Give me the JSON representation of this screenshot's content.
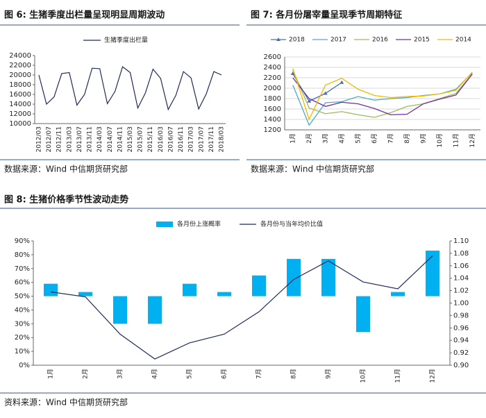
{
  "chart_data": [
    {
      "type": "line",
      "title": "图 6:  生猪季度出栏量呈现明显周期波动",
      "source": "数据来源：Wind  中信期货研究部",
      "x_labels": [
        "2012/03",
        "2012/07",
        "2012/11",
        "2013/03",
        "2013/07",
        "2013/11",
        "2014/03",
        "2014/07",
        "2014/11",
        "2015/03",
        "2015/07",
        "2015/11",
        "2016/03",
        "2016/07",
        "2016/11",
        "2017/03",
        "2017/07",
        "2017/11",
        "2018/03"
      ],
      "series": [
        {
          "name": "生猪季度出栏量",
          "color": "#1f2a5a",
          "values": [
            20000,
            14000,
            15500,
            20300,
            20500,
            13800,
            16000,
            21400,
            21300,
            14100,
            16600,
            21700,
            20500,
            13200,
            16300,
            21200,
            19300,
            12900,
            15800,
            20700,
            19400,
            13000,
            16100,
            20700,
            20000
          ]
        }
      ],
      "ylim": [
        10000,
        24000
      ],
      "yticks": [
        10000,
        12000,
        14000,
        16000,
        18000,
        20000,
        22000,
        24000
      ]
    },
    {
      "type": "line",
      "title": "图 7:  各月份屠宰量呈现季节周期特征",
      "source": "数据来源：Wind  中信期货研究部",
      "categories": [
        "1月",
        "2月",
        "3月",
        "4月",
        "5月",
        "6月",
        "7月",
        "8月",
        "9月",
        "10月",
        "11月",
        "12月"
      ],
      "series": [
        {
          "name": "2018",
          "color": "#4a6fb0",
          "marker": "triangle",
          "values": [
            2280,
            1750,
            1900,
            2110,
            null,
            null,
            null,
            null,
            null,
            null,
            null,
            null
          ]
        },
        {
          "name": "2017",
          "color": "#4bacc6",
          "values": [
            2060,
            1290,
            1720,
            1740,
            1840,
            1770,
            1800,
            1820,
            1860,
            1890,
            1980,
            2300
          ]
        },
        {
          "name": "2016",
          "color": "#9bbb59",
          "values": [
            2350,
            1620,
            1510,
            1550,
            1490,
            1440,
            1530,
            1650,
            1700,
            1800,
            1900,
            2280
          ]
        },
        {
          "name": "2015",
          "color": "#7030a0",
          "values": [
            2200,
            1800,
            1650,
            1730,
            1700,
            1610,
            1490,
            1500,
            1700,
            1790,
            1870,
            2270
          ]
        },
        {
          "name": "2014",
          "color": "#f5b800",
          "values": [
            2380,
            1400,
            2060,
            2190,
            1980,
            1860,
            1820,
            1840,
            1850,
            1890,
            1960,
            2310
          ]
        }
      ],
      "ylim": [
        1200,
        2600
      ],
      "yticks": [
        1200,
        1400,
        1600,
        1800,
        2000,
        2200,
        2400,
        2600
      ]
    },
    {
      "type": "combo",
      "title": "图 8:  生猪价格季节性波动走势",
      "source": "资料来源：Wind    中信期货研究部",
      "categories": [
        "1月",
        "2月",
        "3月",
        "4月",
        "5月",
        "6月",
        "7月",
        "8月",
        "9月",
        "10月",
        "11月",
        "12月"
      ],
      "series": [
        {
          "name": "各月份上涨概率",
          "color": "#00b0f0",
          "kind": "bar",
          "values": [
            59,
            53,
            30,
            30,
            59,
            53,
            65,
            77,
            77,
            24,
            53,
            83
          ]
        },
        {
          "name": "各月份与当年均价比值",
          "color": "#1f2a5a",
          "kind": "line",
          "axis": "y2",
          "values": [
            1.018,
            1.01,
            0.95,
            0.91,
            0.936,
            0.95,
            0.986,
            1.038,
            1.068,
            1.034,
            1.023,
            1.076
          ]
        }
      ],
      "bar_base": 50,
      "ylim": [
        0,
        90
      ],
      "yticks": [
        {
          "value": 0,
          "label": "0%"
        },
        {
          "value": 10,
          "label": "10%"
        },
        {
          "value": 20,
          "label": "20%"
        },
        {
          "value": 30,
          "label": "30%"
        },
        {
          "value": 40,
          "label": "40%"
        },
        {
          "value": 50,
          "label": "50%"
        },
        {
          "value": 60,
          "label": "60%"
        },
        {
          "value": 70,
          "label": "70%"
        },
        {
          "value": 80,
          "label": "80%"
        },
        {
          "value": 90,
          "label": "90%"
        }
      ],
      "y2lim": [
        0.9,
        1.1
      ],
      "y2ticks": [
        {
          "value": 0.9,
          "label": "0.90"
        },
        {
          "value": 0.92,
          "label": "0.92"
        },
        {
          "value": 0.94,
          "label": "0.94"
        },
        {
          "value": 0.96,
          "label": "0.96"
        },
        {
          "value": 0.98,
          "label": "0.98"
        },
        {
          "value": 1.0,
          "label": "1.00"
        },
        {
          "value": 1.02,
          "label": "1.02"
        },
        {
          "value": 1.04,
          "label": "1.04"
        },
        {
          "value": 1.06,
          "label": "1.06"
        },
        {
          "value": 1.08,
          "label": "1.08"
        },
        {
          "value": 1.1,
          "label": "1.10"
        }
      ]
    }
  ]
}
